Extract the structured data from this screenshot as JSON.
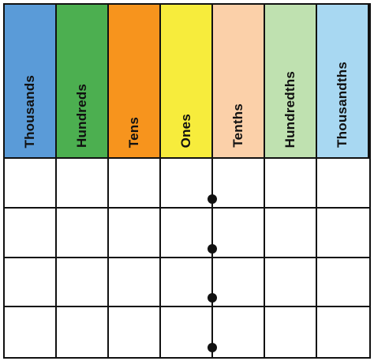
{
  "place_value_chart": {
    "columns": [
      {
        "label": "Thousands",
        "color": "#5a9bd8"
      },
      {
        "label": "Hundreds",
        "color": "#4caf50"
      },
      {
        "label": "Tens",
        "color": "#f7941d"
      },
      {
        "label": "Ones",
        "color": "#f7ec3c"
      },
      {
        "label": "Tenths",
        "color": "#fbd0a9"
      },
      {
        "label": "Hundredths",
        "color": "#bfe1b0"
      },
      {
        "label": "Thousandths",
        "color": "#a8d8f2"
      }
    ],
    "row_count": 4,
    "decimal_point_after_column": "Ones"
  }
}
